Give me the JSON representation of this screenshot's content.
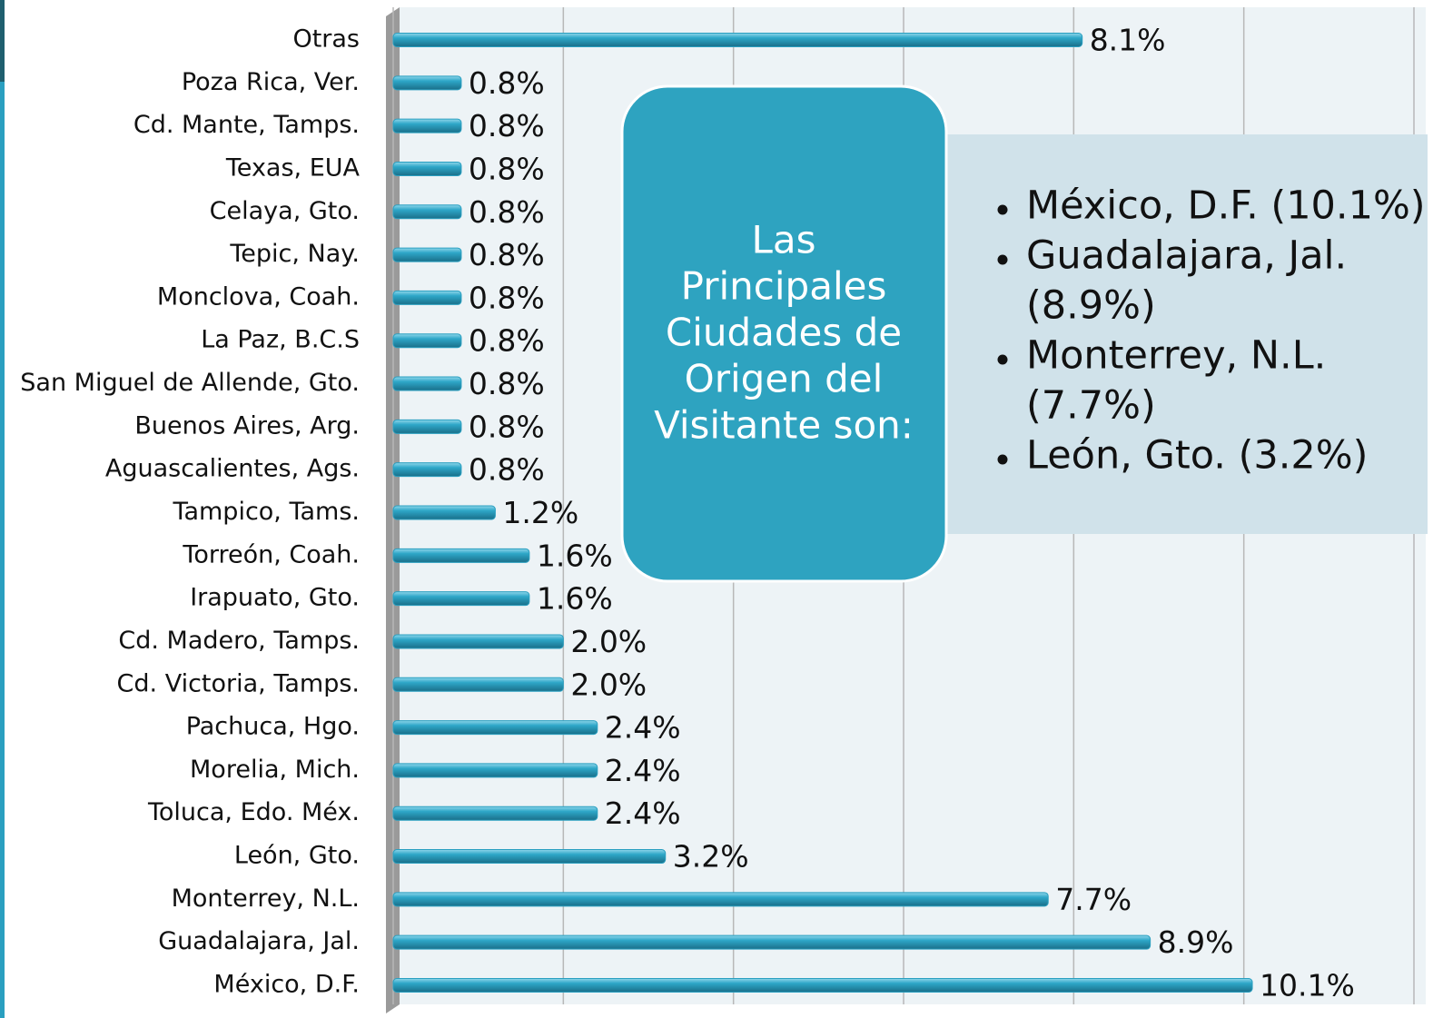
{
  "chart_data": {
    "type": "bar",
    "orientation": "horizontal",
    "categories": [
      "Otras",
      "Poza Rica, Ver.",
      "Cd. Mante, Tamps.",
      "Texas, EUA",
      "Celaya, Gto.",
      "Tepic, Nay.",
      "Monclova, Coah.",
      "La Paz, B.C.S",
      "San Miguel de Allende, Gto.",
      "Buenos Aires, Arg.",
      "Aguascalientes, Ags.",
      "Tampico, Tams.",
      "Torreón, Coah.",
      "Irapuato, Gto.",
      "Cd. Madero, Tamps.",
      "Cd. Victoria, Tamps.",
      "Pachuca, Hgo.",
      "Morelia, Mich.",
      "Toluca, Edo. Méx.",
      "León, Gto.",
      "Monterrey, N.L.",
      "Guadalajara, Jal.",
      "México, D.F."
    ],
    "values": [
      8.1,
      0.8,
      0.8,
      0.8,
      0.8,
      0.8,
      0.8,
      0.8,
      0.8,
      0.8,
      0.8,
      1.2,
      1.6,
      1.6,
      2.0,
      2.0,
      2.4,
      2.4,
      2.4,
      3.2,
      7.7,
      8.9,
      10.1
    ],
    "value_labels": [
      "8.1%",
      "0.8%",
      "0.8%",
      "0.8%",
      "0.8%",
      "0.8%",
      "0.8%",
      "0.8%",
      "0.8%",
      "0.8%",
      "0.8%",
      "1.2%",
      "1.6%",
      "1.6%",
      "2.0%",
      "2.0%",
      "2.4%",
      "2.4%",
      "2.4%",
      "3.2%",
      "7.7%",
      "8.9%",
      "10.1%"
    ],
    "color": "#2a9fc0",
    "xlim": [
      0,
      12
    ],
    "xticks": [
      0,
      2,
      4,
      6,
      8,
      10,
      12
    ],
    "grid": true,
    "annotation": {
      "title": [
        "Las",
        "Principales",
        "Ciudades de",
        "Origen del",
        "Visitante son:"
      ],
      "bullets": [
        [
          "México, D.F. (10.1%)"
        ],
        [
          "Guadalajara, Jal.",
          "(8.9%)"
        ],
        [
          "Monterrey, N.L.",
          "(7.7%)"
        ],
        [
          "León, Gto. (3.2%)"
        ]
      ]
    }
  }
}
